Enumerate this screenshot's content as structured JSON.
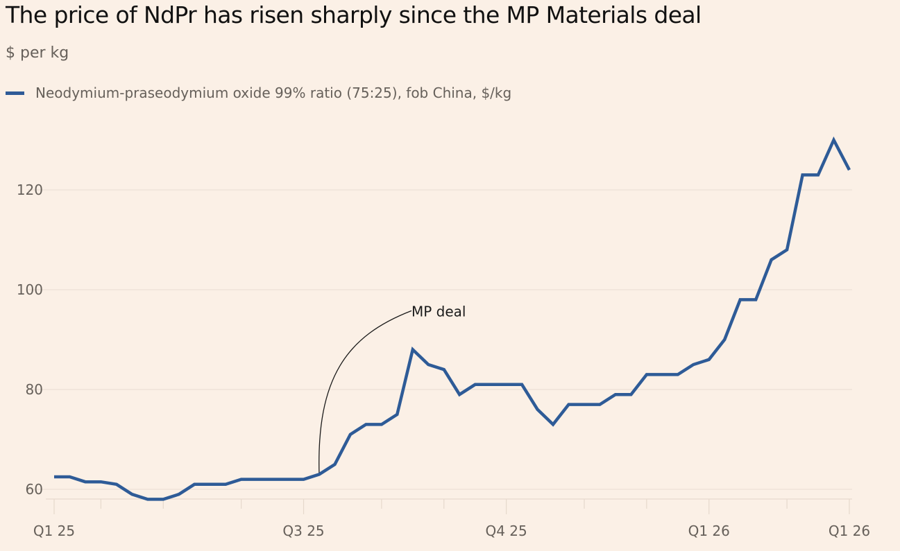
{
  "chart_data": {
    "type": "line",
    "title": "The price of NdPr has risen sharply since the MP Materials deal",
    "subtitle": "$ per kg",
    "ylabel": "",
    "xlabel": "",
    "ylim": [
      58,
      131
    ],
    "grid": true,
    "legend_placement": "top-left",
    "y_ticks": [
      60,
      80,
      100,
      120
    ],
    "x_ticks": [
      {
        "index": 0,
        "label": "Q1 25"
      },
      {
        "index": 16,
        "label": "Q3 25"
      },
      {
        "index": 29,
        "label": "Q4 25"
      },
      {
        "index": 42,
        "label": "Q1 26"
      },
      {
        "index": 51,
        "label": "Q1 26"
      }
    ],
    "series": [
      {
        "name": "Neodymium-praseodymium oxide 99% ratio (75:25), fob China, $/kg",
        "color": "#2e5b97",
        "values": [
          62.5,
          62.5,
          61.5,
          61.5,
          61,
          59,
          58,
          58,
          59,
          61,
          61,
          61,
          62,
          62,
          62,
          62,
          62,
          63,
          65,
          71,
          73,
          73,
          75,
          88,
          85,
          84,
          79,
          81,
          81,
          81,
          81,
          76,
          73,
          77,
          77,
          77,
          79,
          79,
          83,
          83,
          83,
          85,
          86,
          90,
          98,
          98,
          106,
          108,
          123,
          123,
          130,
          124
        ]
      }
    ],
    "annotations": [
      {
        "label": "MP deal",
        "index": 17
      }
    ]
  }
}
